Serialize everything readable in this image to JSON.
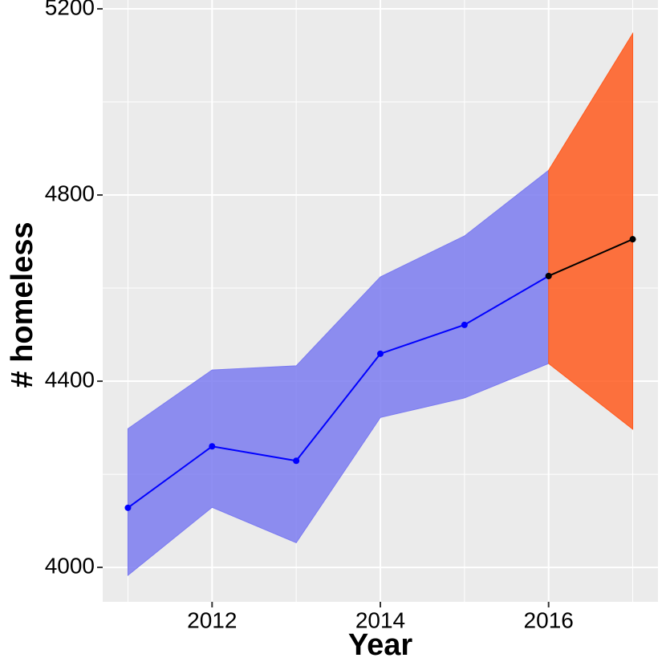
{
  "chart_data": {
    "type": "line",
    "x_label": "Year",
    "y_label": "# homeless",
    "xlim": [
      2010.7,
      2017.3
    ],
    "ylim": [
      3926,
      5219
    ],
    "xticks": [
      2012,
      2014,
      2016
    ],
    "yticks": [
      4000,
      4400,
      4800,
      5200
    ],
    "grid": true,
    "series": [
      {
        "color": "#0000ff",
        "band_color": "#7b7bf0",
        "x": [
          2011,
          2012,
          2013,
          2014,
          2015,
          2016
        ],
        "values": [
          4128,
          4260,
          4229,
          4459,
          4521,
          4626
        ],
        "lower": [
          3983,
          4129,
          4053,
          4322,
          4364,
          4438
        ],
        "upper": [
          4298,
          4424,
          4433,
          4624,
          4712,
          4853
        ]
      },
      {
        "color": "#000000",
        "band_color": "#ff5a1f",
        "x": [
          2016,
          2017
        ],
        "values": [
          4626,
          4705
        ],
        "lower": [
          4438,
          4297
        ],
        "upper": [
          4853,
          5147
        ]
      }
    ]
  }
}
